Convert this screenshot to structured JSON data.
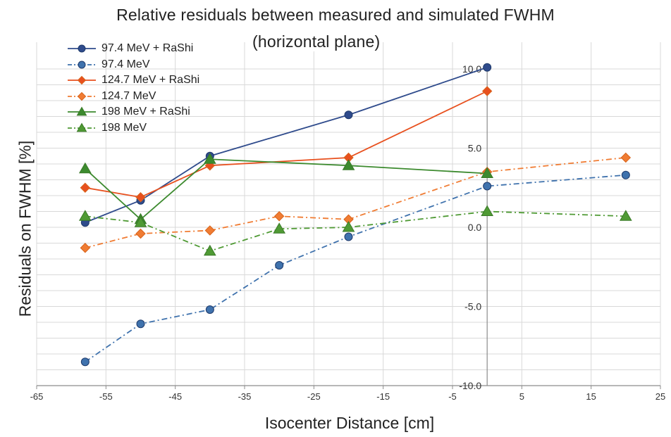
{
  "chart_data": {
    "type": "line",
    "title": "Relative residuals between measured and simulated FWHM",
    "subtitle": "(horizontal plane)",
    "xlabel": "Isocenter Distance [cm]",
    "ylabel": "Residuals on FWHM [%]",
    "xlim": [
      -65,
      25
    ],
    "ylim": [
      -10,
      10
    ],
    "x_ticks": [
      "-65",
      "-55",
      "-45",
      "-35",
      "-25",
      "-15",
      "-5",
      "5",
      "15",
      "25"
    ],
    "y_ticks": [
      "10.0",
      "5.0",
      "0.0",
      "-5.0",
      "-10.0"
    ],
    "grid": true,
    "legend_position": "top-left",
    "series": [
      {
        "name": "97.4 MeV + RaShi",
        "color": "#2f4b8c",
        "marker": "circle",
        "dash": "solid",
        "x": [
          -58,
          -50,
          -40,
          -20,
          0
        ],
        "y": [
          0.3,
          1.7,
          4.5,
          7.1,
          10.1
        ]
      },
      {
        "name": "97.4 MeV",
        "color": "#3f72ad",
        "marker": "circle",
        "dash": "dashdot",
        "x": [
          -58,
          -50,
          -40,
          -30,
          -20,
          0,
          20
        ],
        "y": [
          -8.5,
          -6.1,
          -5.2,
          -2.4,
          -0.6,
          2.6,
          3.3
        ]
      },
      {
        "name": "124.7 MeV + RaShi",
        "color": "#e8501e",
        "marker": "diamond",
        "dash": "solid",
        "x": [
          -58,
          -50,
          -40,
          -20,
          0
        ],
        "y": [
          2.5,
          1.9,
          3.9,
          4.4,
          8.6
        ]
      },
      {
        "name": "124.7 MeV",
        "color": "#f07c33",
        "marker": "diamond",
        "dash": "dashdot",
        "x": [
          -58,
          -50,
          -40,
          -30,
          -20,
          0,
          20
        ],
        "y": [
          -1.3,
          -0.4,
          -0.2,
          0.7,
          0.5,
          3.5,
          4.4
        ]
      },
      {
        "name": "198 MeV + RaShi",
        "color": "#3c8a2e",
        "marker": "triangle",
        "dash": "solid",
        "x": [
          -58,
          -50,
          -40,
          -20,
          0
        ],
        "y": [
          3.7,
          0.5,
          4.3,
          3.9,
          3.4
        ]
      },
      {
        "name": "198 MeV",
        "color": "#4f9a34",
        "marker": "triangle",
        "dash": "dashdot",
        "x": [
          -58,
          -50,
          -40,
          -30,
          -20,
          0,
          20
        ],
        "y": [
          0.7,
          0.3,
          -1.5,
          -0.1,
          0.0,
          1.0,
          0.7
        ]
      }
    ]
  }
}
